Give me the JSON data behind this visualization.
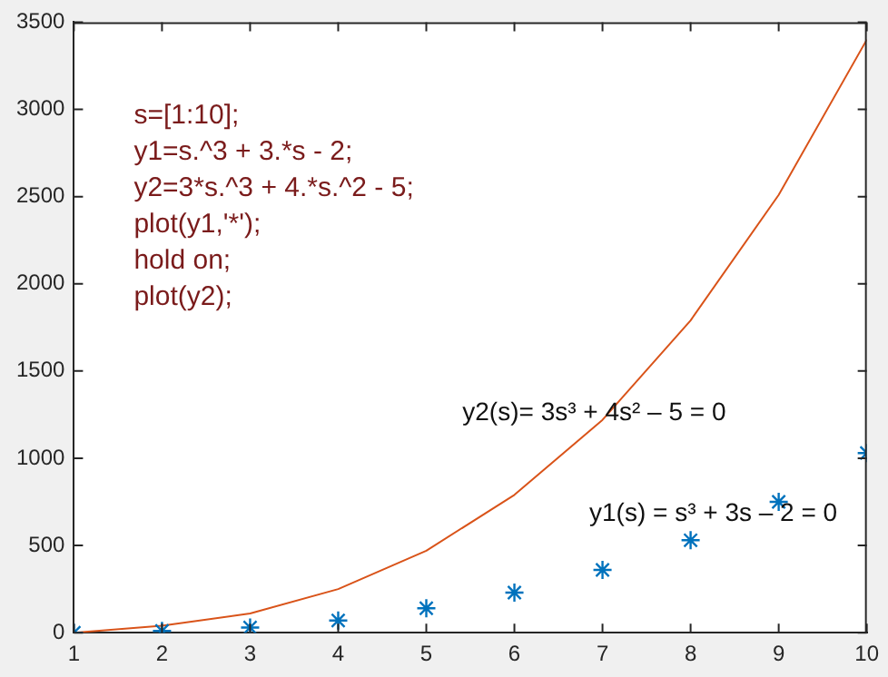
{
  "chart_data": {
    "type": "line",
    "x": [
      1,
      2,
      3,
      4,
      5,
      6,
      7,
      8,
      9,
      10
    ],
    "series": [
      {
        "type": "scatter",
        "color": "#0072bd",
        "marker": "cross",
        "values": [
          0,
          10,
          30,
          70,
          140,
          230,
          360,
          530,
          750,
          1030
        ]
      },
      {
        "color": "#d95319",
        "marker": "none",
        "line_style": "solid",
        "values": [
          0,
          40,
          110,
          250,
          470,
          790,
          1220,
          1790,
          2510,
          3400
        ]
      }
    ],
    "xlim": [
      1,
      10
    ],
    "xticks": [
      1,
      2,
      3,
      4,
      5,
      6,
      7,
      8,
      9,
      10
    ],
    "ylim": [
      0,
      3500
    ],
    "yticks": [
      0,
      500,
      1000,
      1500,
      2000,
      2500,
      3000,
      3500
    ],
    "grid": false,
    "legend": false,
    "annotations": [
      "s=[1:10];",
      "y1=s.^3 + 3.*s - 2;",
      "y2=3*s.^3 + 4.*s.^2 - 5;",
      "plot(y1,'*');",
      "hold on;",
      "plot(y2);",
      "y2(s)= 3s³ + 4s² – 5 = 0",
      "y1(s) = s³ + 3s – 2 = 0"
    ]
  }
}
